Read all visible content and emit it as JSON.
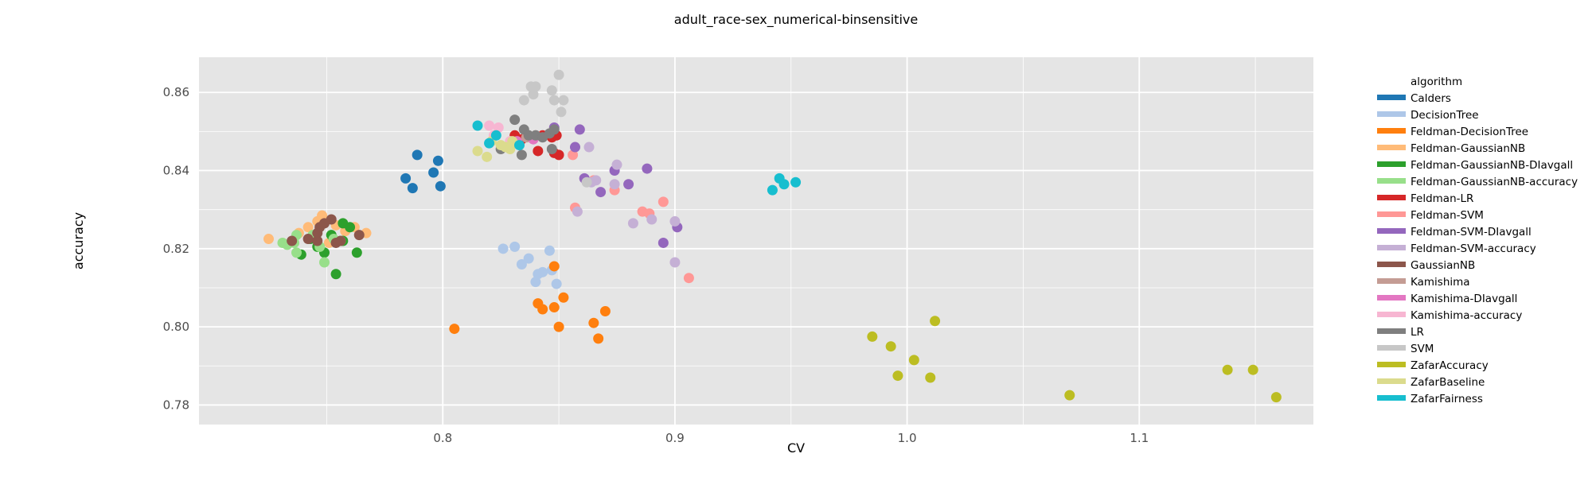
{
  "chart_data": {
    "type": "scatter",
    "title": "adult_race-sex_numerical-binsensitive",
    "xlabel": "CV",
    "ylabel": "accuracy",
    "xlim": [
      0.695,
      1.175
    ],
    "ylim": [
      0.775,
      0.869
    ],
    "xticks": [
      0.8,
      0.9,
      1.0,
      1.1
    ],
    "yticks": [
      0.78,
      0.8,
      0.82,
      0.84,
      0.86
    ],
    "xtick_labels": [
      "0.8",
      "0.9",
      "1.0",
      "1.1"
    ],
    "ytick_labels": [
      "0.78",
      "0.80",
      "0.82",
      "0.84",
      "0.86"
    ],
    "grid": true,
    "legend_title": "algorithm",
    "legend_position": "right",
    "series": [
      {
        "name": "Calders",
        "color": "#1f77b4",
        "points": [
          [
            0.784,
            0.838
          ],
          [
            0.787,
            0.8355
          ],
          [
            0.789,
            0.844
          ],
          [
            0.796,
            0.8395
          ],
          [
            0.798,
            0.8425
          ],
          [
            0.799,
            0.836
          ]
        ]
      },
      {
        "name": "DecisionTree",
        "color": "#aec7e8",
        "points": [
          [
            0.826,
            0.82
          ],
          [
            0.831,
            0.8205
          ],
          [
            0.834,
            0.816
          ],
          [
            0.837,
            0.8175
          ],
          [
            0.84,
            0.8115
          ],
          [
            0.841,
            0.8135
          ],
          [
            0.843,
            0.814
          ],
          [
            0.846,
            0.8195
          ],
          [
            0.847,
            0.8145
          ],
          [
            0.849,
            0.811
          ]
        ]
      },
      {
        "name": "Feldman-DecisionTree",
        "color": "#ff7f0e",
        "points": [
          [
            0.805,
            0.7995
          ],
          [
            0.841,
            0.806
          ],
          [
            0.843,
            0.8045
          ],
          [
            0.848,
            0.805
          ],
          [
            0.848,
            0.8155
          ],
          [
            0.85,
            0.8
          ],
          [
            0.852,
            0.8075
          ],
          [
            0.865,
            0.801
          ],
          [
            0.867,
            0.797
          ],
          [
            0.87,
            0.804
          ]
        ]
      },
      {
        "name": "Feldman-GaussianNB",
        "color": "#ffbb78",
        "points": [
          [
            0.725,
            0.8225
          ],
          [
            0.738,
            0.824
          ],
          [
            0.742,
            0.8255
          ],
          [
            0.746,
            0.827
          ],
          [
            0.748,
            0.8285
          ],
          [
            0.751,
            0.8215
          ],
          [
            0.754,
            0.826
          ],
          [
            0.758,
            0.8245
          ],
          [
            0.762,
            0.8255
          ],
          [
            0.767,
            0.824
          ]
        ]
      },
      {
        "name": "Feldman-GaussianNB-DIavgall",
        "color": "#2ca02c",
        "points": [
          [
            0.739,
            0.8185
          ],
          [
            0.743,
            0.8225
          ],
          [
            0.746,
            0.8205
          ],
          [
            0.749,
            0.819
          ],
          [
            0.752,
            0.8235
          ],
          [
            0.754,
            0.8135
          ],
          [
            0.757,
            0.8265
          ],
          [
            0.757,
            0.822
          ],
          [
            0.76,
            0.8255
          ],
          [
            0.763,
            0.819
          ]
        ]
      },
      {
        "name": "Feldman-GaussianNB-accuracy",
        "color": "#98df8a",
        "points": [
          [
            0.731,
            0.8215
          ],
          [
            0.733,
            0.821
          ],
          [
            0.736,
            0.8215
          ],
          [
            0.737,
            0.8235
          ],
          [
            0.737,
            0.819
          ],
          [
            0.744,
            0.8235
          ],
          [
            0.747,
            0.8205
          ],
          [
            0.749,
            0.8165
          ],
          [
            0.753,
            0.8225
          ],
          [
            0.756,
            0.822
          ]
        ]
      },
      {
        "name": "Feldman-LR",
        "color": "#d62728",
        "points": [
          [
            0.831,
            0.849
          ],
          [
            0.834,
            0.848
          ],
          [
            0.838,
            0.8485
          ],
          [
            0.841,
            0.845
          ],
          [
            0.843,
            0.849
          ],
          [
            0.847,
            0.8485
          ],
          [
            0.848,
            0.8445
          ],
          [
            0.849,
            0.849
          ],
          [
            0.85,
            0.844
          ]
        ]
      },
      {
        "name": "Feldman-SVM",
        "color": "#ff9896",
        "points": [
          [
            0.856,
            0.844
          ],
          [
            0.857,
            0.8305
          ],
          [
            0.865,
            0.8375
          ],
          [
            0.874,
            0.835
          ],
          [
            0.886,
            0.8295
          ],
          [
            0.889,
            0.829
          ],
          [
            0.895,
            0.832
          ],
          [
            0.906,
            0.8125
          ]
        ]
      },
      {
        "name": "Feldman-SVM-DIavgall",
        "color": "#9467bd",
        "points": [
          [
            0.848,
            0.851
          ],
          [
            0.857,
            0.846
          ],
          [
            0.859,
            0.8505
          ],
          [
            0.861,
            0.838
          ],
          [
            0.868,
            0.8345
          ],
          [
            0.874,
            0.84
          ],
          [
            0.88,
            0.8365
          ],
          [
            0.888,
            0.8405
          ],
          [
            0.895,
            0.8215
          ],
          [
            0.901,
            0.8255
          ]
        ]
      },
      {
        "name": "Feldman-SVM-accuracy",
        "color": "#c5b0d5",
        "points": [
          [
            0.858,
            0.8295
          ],
          [
            0.863,
            0.846
          ],
          [
            0.864,
            0.837
          ],
          [
            0.866,
            0.8375
          ],
          [
            0.874,
            0.8365
          ],
          [
            0.875,
            0.8415
          ],
          [
            0.882,
            0.8265
          ],
          [
            0.89,
            0.8275
          ],
          [
            0.9,
            0.827
          ],
          [
            0.9,
            0.8165
          ]
        ]
      },
      {
        "name": "GaussianNB",
        "color": "#8c564b",
        "points": [
          [
            0.735,
            0.822
          ],
          [
            0.742,
            0.8225
          ],
          [
            0.746,
            0.822
          ],
          [
            0.747,
            0.8255
          ],
          [
            0.749,
            0.8265
          ],
          [
            0.752,
            0.8275
          ],
          [
            0.754,
            0.8215
          ],
          [
            0.756,
            0.822
          ],
          [
            0.764,
            0.8235
          ],
          [
            0.746,
            0.824
          ]
        ]
      },
      {
        "name": "Kamishima",
        "color": "#c49c94",
        "points": [
          [
            0.83,
            0.847
          ],
          [
            0.836,
            0.8485
          ],
          [
            0.84,
            0.849
          ]
        ]
      },
      {
        "name": "Kamishima-DIavgall",
        "color": "#e377c2",
        "points": [
          [
            0.832,
            0.8475
          ],
          [
            0.839,
            0.848
          ]
        ]
      },
      {
        "name": "Kamishima-accuracy",
        "color": "#f7b6d2",
        "points": [
          [
            0.82,
            0.8515
          ],
          [
            0.824,
            0.851
          ],
          [
            0.822,
            0.849
          ],
          [
            0.829,
            0.8475
          ]
        ]
      },
      {
        "name": "LR",
        "color": "#7f7f7f",
        "points": [
          [
            0.825,
            0.8455
          ],
          [
            0.831,
            0.853
          ],
          [
            0.834,
            0.844
          ],
          [
            0.835,
            0.8505
          ],
          [
            0.837,
            0.849
          ],
          [
            0.84,
            0.849
          ],
          [
            0.843,
            0.8485
          ],
          [
            0.846,
            0.8495
          ],
          [
            0.847,
            0.8455
          ],
          [
            0.848,
            0.8505
          ]
        ]
      },
      {
        "name": "SVM",
        "color": "#c7c7c7",
        "points": [
          [
            0.835,
            0.858
          ],
          [
            0.838,
            0.8615
          ],
          [
            0.839,
            0.8595
          ],
          [
            0.84,
            0.8615
          ],
          [
            0.847,
            0.8605
          ],
          [
            0.848,
            0.858
          ],
          [
            0.85,
            0.8645
          ],
          [
            0.851,
            0.855
          ],
          [
            0.852,
            0.858
          ],
          [
            0.862,
            0.837
          ]
        ]
      },
      {
        "name": "ZafarAccuracy",
        "color": "#bcbd22",
        "points": [
          [
            0.985,
            0.7975
          ],
          [
            0.993,
            0.795
          ],
          [
            0.996,
            0.7875
          ],
          [
            1.003,
            0.7915
          ],
          [
            1.01,
            0.787
          ],
          [
            1.012,
            0.8015
          ],
          [
            1.07,
            0.7825
          ],
          [
            1.138,
            0.789
          ],
          [
            1.149,
            0.789
          ],
          [
            1.159,
            0.782
          ]
        ]
      },
      {
        "name": "ZafarBaseline",
        "color": "#dbdb8d",
        "points": [
          [
            0.815,
            0.845
          ],
          [
            0.819,
            0.8435
          ],
          [
            0.821,
            0.8475
          ],
          [
            0.825,
            0.8465
          ],
          [
            0.827,
            0.846
          ],
          [
            0.829,
            0.8455
          ],
          [
            0.83,
            0.8475
          ]
        ]
      },
      {
        "name": "ZafarFairness",
        "color": "#17becf",
        "points": [
          [
            0.815,
            0.8515
          ],
          [
            0.82,
            0.847
          ],
          [
            0.823,
            0.849
          ],
          [
            0.833,
            0.8465
          ],
          [
            0.942,
            0.835
          ],
          [
            0.945,
            0.838
          ],
          [
            0.947,
            0.8365
          ],
          [
            0.952,
            0.837
          ]
        ]
      }
    ]
  }
}
